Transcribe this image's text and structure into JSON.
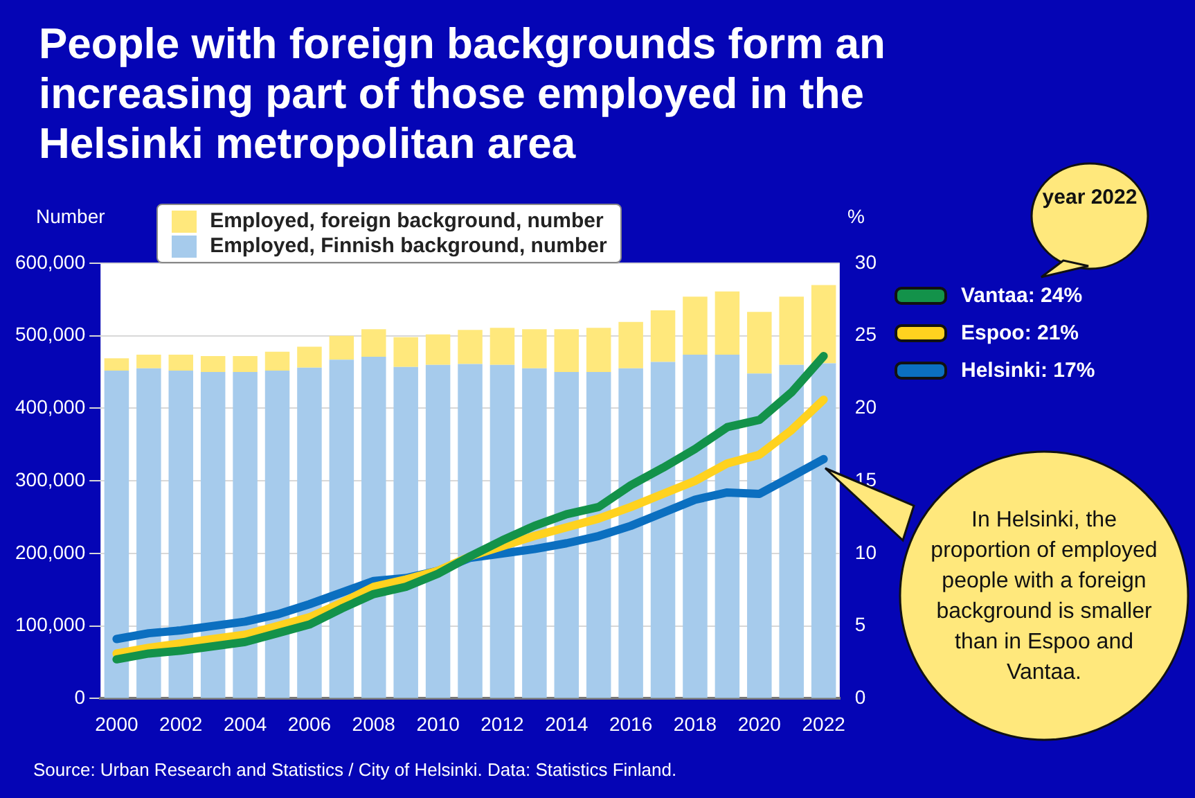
{
  "chart_data": {
    "type": "bar",
    "title": "People with foreign backgrounds form an increasing part of those employed in the Helsinki metropolitan area",
    "ylabel": "Number",
    "y2label": "%",
    "categories": [
      "2000",
      null,
      "2002",
      null,
      "2004",
      null,
      "2006",
      null,
      "2008",
      null,
      "2010",
      null,
      "2012",
      null,
      "2014",
      null,
      "2016",
      null,
      "2018",
      null,
      "2020",
      null,
      "2022"
    ],
    "stacked": true,
    "series": [
      {
        "name": "Employed, Finnish background, number",
        "color": "#a6cbec",
        "values": [
          452000,
          455000,
          452000,
          450000,
          450000,
          452000,
          456000,
          467000,
          471000,
          457000,
          460000,
          461000,
          460000,
          455000,
          450000,
          450000,
          455000,
          464000,
          474000,
          474000,
          448000,
          460000,
          462000
        ]
      },
      {
        "name": "Employed, foreign background, number",
        "color": "#ffe87c",
        "values": [
          17000,
          19000,
          22000,
          22000,
          22000,
          26000,
          29000,
          33000,
          38000,
          41000,
          42000,
          47000,
          51000,
          54000,
          59000,
          61000,
          64000,
          71000,
          80000,
          87000,
          85000,
          94000,
          108000
        ]
      },
      {
        "name": "Vantaa: 24%",
        "type": "line",
        "axis": "y2",
        "color": "#13924a",
        "values": [
          2.7,
          3.1,
          3.3,
          3.6,
          3.9,
          4.5,
          5.1,
          6.2,
          7.2,
          7.7,
          8.6,
          9.8,
          10.9,
          11.9,
          12.7,
          13.2,
          14.7,
          15.9,
          17.2,
          18.7,
          19.2,
          21.1,
          23.6
        ]
      },
      {
        "name": "Espoo: 21%",
        "type": "line",
        "axis": "y2",
        "color": "#ffd21f",
        "values": [
          3.1,
          3.5,
          3.8,
          4.1,
          4.4,
          5.0,
          5.6,
          6.6,
          7.7,
          8.2,
          8.8,
          9.8,
          10.5,
          11.2,
          11.8,
          12.4,
          13.2,
          14.1,
          15.0,
          16.2,
          16.8,
          18.5,
          20.6
        ]
      },
      {
        "name": "Helsinki: 17%",
        "type": "line",
        "axis": "y2",
        "color": "#0b6fc0",
        "values": [
          4.1,
          4.5,
          4.7,
          5.0,
          5.3,
          5.8,
          6.5,
          7.3,
          8.1,
          8.3,
          8.8,
          9.7,
          10.0,
          10.3,
          10.7,
          11.2,
          11.9,
          12.8,
          13.7,
          14.2,
          14.1,
          15.3,
          16.5
        ]
      }
    ],
    "ylim": [
      0,
      600000
    ],
    "yticks": [
      0,
      {
        "value": 100000,
        "label": "100,000"
      },
      {
        "value": 200000,
        "label": "200,000"
      },
      {
        "value": 300000,
        "label": "300,000"
      },
      {
        "value": 400000,
        "label": "400,000"
      },
      {
        "value": 500000,
        "label": "500,000"
      },
      {
        "value": 600000,
        "label": "600,000"
      }
    ],
    "y2lim": [
      0,
      30
    ],
    "y2ticks": [
      0,
      5,
      10,
      15,
      20,
      25,
      30
    ],
    "grid": "y",
    "legend": "top",
    "marker": "none",
    "annotations": [
      "year 2022",
      "In Helsinki, the proportion of employed people with a foreign background is smaller than in Espoo and Vantaa.",
      "Source: Urban Research and Statistics / City of Helsinki. Data: Statistics Finland."
    ]
  }
}
